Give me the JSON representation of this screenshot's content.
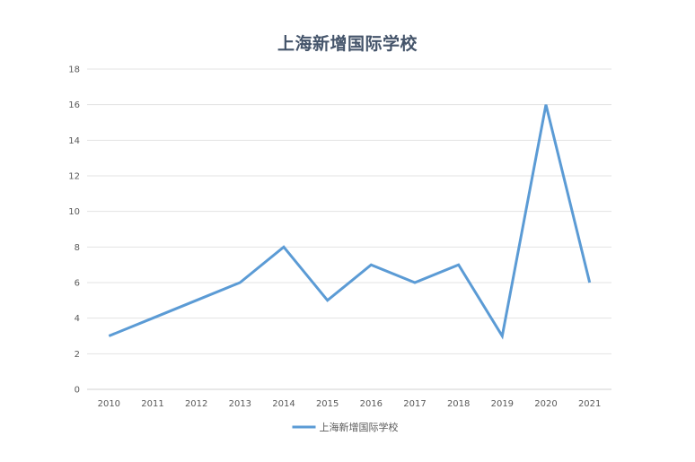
{
  "chart_data": {
    "type": "line",
    "title": "上海新增国际学校",
    "xlabel": "",
    "ylabel": "",
    "categories": [
      "2010",
      "2011",
      "2012",
      "2013",
      "2014",
      "2015",
      "2016",
      "2017",
      "2018",
      "2019",
      "2020",
      "2021"
    ],
    "series": [
      {
        "name": "上海新增国际学校",
        "values": [
          3,
          4,
          5,
          6,
          8,
          5,
          7,
          6,
          7,
          3,
          16,
          6
        ],
        "color": "#5b9bd5"
      }
    ],
    "ylim": [
      0,
      18
    ],
    "yticks": [
      0,
      2,
      4,
      6,
      8,
      10,
      12,
      14,
      16,
      18
    ],
    "grid": true,
    "legend_position": "bottom"
  }
}
